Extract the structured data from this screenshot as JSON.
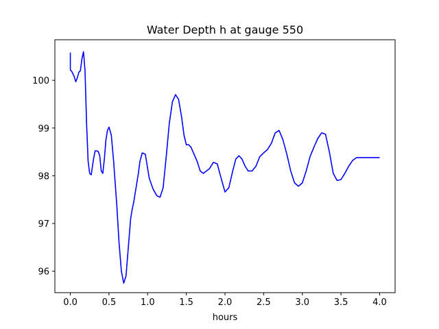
{
  "chart_data": {
    "type": "line",
    "title": "Water Depth h at gauge 550",
    "xlabel": "hours",
    "ylabel": "",
    "xlim": [
      -0.2,
      4.2
    ],
    "ylim": [
      95.55,
      100.85
    ],
    "grid": false,
    "x_ticks": [
      0.0,
      0.5,
      1.0,
      1.5,
      2.0,
      2.5,
      3.0,
      3.5,
      4.0
    ],
    "x_tick_labels": [
      "0.0",
      "0.5",
      "1.0",
      "1.5",
      "2.0",
      "2.5",
      "3.0",
      "3.5",
      "4.0"
    ],
    "y_ticks": [
      96,
      97,
      98,
      99,
      100
    ],
    "y_tick_labels": [
      "96",
      "97",
      "98",
      "99",
      "100"
    ],
    "series": [
      {
        "color": "#0000ff",
        "x": [
          0.0,
          0.0,
          0.0,
          0.02,
          0.05,
          0.07,
          0.09,
          0.11,
          0.13,
          0.15,
          0.17,
          0.19,
          0.21,
          0.23,
          0.25,
          0.27,
          0.3,
          0.32,
          0.34,
          0.36,
          0.38,
          0.4,
          0.42,
          0.44,
          0.46,
          0.48,
          0.5,
          0.53,
          0.56,
          0.6,
          0.63,
          0.66,
          0.69,
          0.72,
          0.75,
          0.78,
          0.8,
          0.82,
          0.84,
          0.86,
          0.88,
          0.9,
          0.93,
          0.97,
          1.02,
          1.07,
          1.12,
          1.16,
          1.2,
          1.24,
          1.28,
          1.32,
          1.36,
          1.4,
          1.44,
          1.47,
          1.5,
          1.53,
          1.56,
          1.6,
          1.64,
          1.68,
          1.72,
          1.76,
          1.8,
          1.85,
          1.9,
          1.95,
          2.0,
          2.05,
          2.1,
          2.14,
          2.18,
          2.22,
          2.26,
          2.3,
          2.35,
          2.4,
          2.45,
          2.5,
          2.55,
          2.6,
          2.65,
          2.7,
          2.75,
          2.8,
          2.85,
          2.9,
          2.95,
          3.0,
          3.05,
          3.1,
          3.15,
          3.2,
          3.25,
          3.3,
          3.35,
          3.4,
          3.45,
          3.5,
          3.55,
          3.6,
          3.65,
          3.7,
          3.75,
          3.8,
          3.85,
          3.9,
          3.95,
          4.0
        ],
        "y": [
          100.58,
          100.3,
          100.22,
          100.18,
          100.08,
          99.97,
          100.05,
          100.17,
          100.2,
          100.45,
          100.6,
          100.2,
          99.1,
          98.3,
          98.05,
          98.02,
          98.35,
          98.52,
          98.52,
          98.51,
          98.42,
          98.1,
          98.05,
          98.35,
          98.75,
          98.95,
          99.02,
          98.85,
          98.3,
          97.4,
          96.6,
          96.0,
          95.75,
          95.9,
          96.5,
          97.1,
          97.3,
          97.45,
          97.65,
          97.85,
          98.05,
          98.3,
          98.48,
          98.45,
          97.95,
          97.72,
          97.58,
          97.55,
          97.75,
          98.4,
          99.1,
          99.55,
          99.7,
          99.6,
          99.22,
          98.85,
          98.65,
          98.65,
          98.6,
          98.45,
          98.3,
          98.1,
          98.05,
          98.1,
          98.15,
          98.28,
          98.25,
          97.95,
          97.66,
          97.75,
          98.1,
          98.35,
          98.42,
          98.35,
          98.2,
          98.1,
          98.1,
          98.2,
          98.4,
          98.48,
          98.55,
          98.68,
          98.9,
          98.95,
          98.75,
          98.45,
          98.1,
          97.85,
          97.78,
          97.85,
          98.1,
          98.4,
          98.6,
          98.78,
          98.9,
          98.87,
          98.5,
          98.05,
          97.9,
          97.92,
          98.05,
          98.2,
          98.32,
          98.38,
          98.38,
          98.38,
          98.38,
          98.38,
          98.38,
          98.38
        ]
      }
    ]
  }
}
